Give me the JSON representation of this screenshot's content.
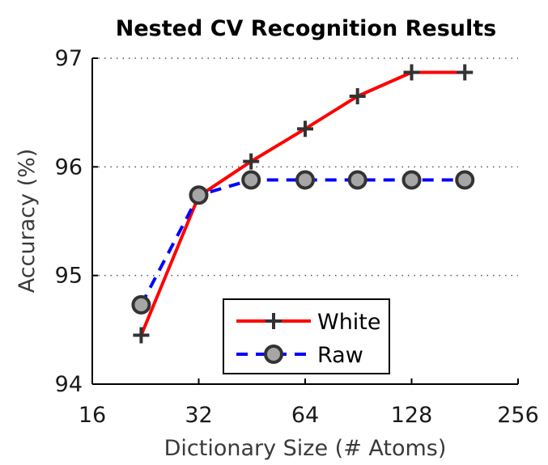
{
  "chart_data": {
    "type": "line",
    "title": "Nested CV Recognition Results",
    "xlabel": "Dictionary Size (# Atoms)",
    "ylabel": "Accuracy (%)",
    "x_scale": "log2",
    "xlim": [
      16,
      256
    ],
    "ylim": [
      94,
      97
    ],
    "x_ticks": [
      16,
      32,
      64,
      128,
      256
    ],
    "x_tick_labels": [
      "16",
      "32",
      "64",
      "128",
      "256"
    ],
    "y_ticks": [
      94,
      95,
      96,
      97
    ],
    "y_tick_labels": [
      "94",
      "95",
      "96",
      "97"
    ],
    "grid": "horizontal-dotted",
    "legend_position": "bottom-center",
    "series": [
      {
        "name": "White",
        "color": "#ff0000",
        "line_style": "solid",
        "marker": "plus",
        "marker_color": "#333333",
        "x": [
          22,
          32,
          45,
          64,
          90,
          128,
          181
        ],
        "y": [
          94.45,
          95.73,
          96.05,
          96.35,
          96.65,
          96.87,
          96.87
        ]
      },
      {
        "name": "Raw",
        "color": "#0000ff",
        "line_style": "dashed",
        "marker": "circle",
        "marker_color": "#a6a6a6",
        "marker_edge": "#333333",
        "x": [
          22,
          32,
          45,
          64,
          90,
          128,
          181
        ],
        "y": [
          94.73,
          95.74,
          95.88,
          95.88,
          95.88,
          95.88,
          95.88
        ]
      }
    ]
  }
}
